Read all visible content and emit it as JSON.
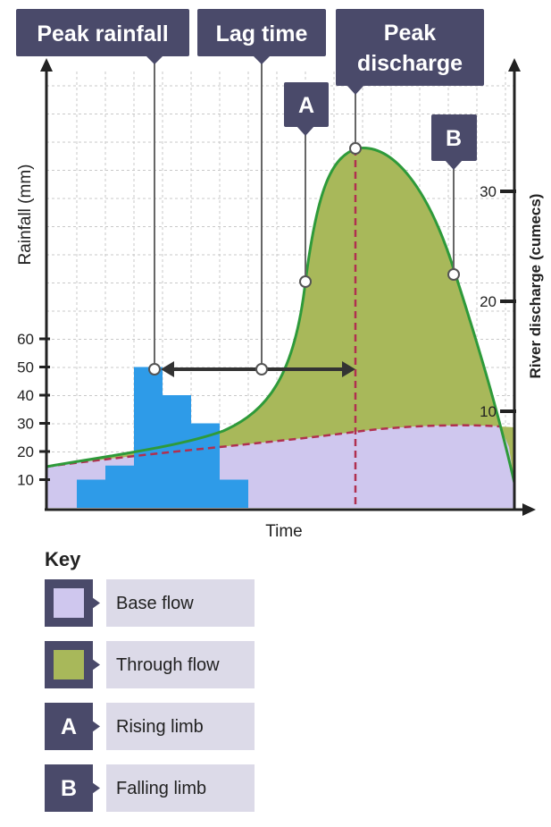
{
  "chart_data": {
    "type": "hydrograph",
    "callouts": {
      "peak_rainfall": "Peak rainfall",
      "lag_time": "Lag time",
      "peak_discharge_line1": "Peak",
      "peak_discharge_line2": "discharge",
      "a": "A",
      "b": "B"
    },
    "xlabel": "Time",
    "ylabel_left": "Rainfall (mm)",
    "ylabel_right": "River discharge (cumecs)",
    "left_ticks": [
      "10",
      "20",
      "30",
      "40",
      "50",
      "60"
    ],
    "right_ticks": [
      "10",
      "20",
      "30"
    ],
    "rainfall": [
      {
        "slot": 1,
        "value": 10
      },
      {
        "slot": 2,
        "value": 15
      },
      {
        "slot": 3,
        "value": 50
      },
      {
        "slot": 4,
        "value": 40
      },
      {
        "slot": 5,
        "value": 30
      },
      {
        "slot": 6,
        "value": 10
      }
    ],
    "colors": {
      "base_flow": "#cfc7ee",
      "through_flow": "#a8b85a",
      "rainfall_bars": "#2e9be8",
      "discharge_line": "#2e9a3a",
      "base_line": "#b03050",
      "callout": "#4a4a6a",
      "key_bg": "#dcdae8"
    }
  },
  "key": {
    "title": "Key",
    "items": [
      {
        "swatch": "base-flow",
        "label": "Base flow"
      },
      {
        "swatch": "through-flow",
        "label": "Through flow"
      },
      {
        "swatch": "A",
        "label": "Rising limb"
      },
      {
        "swatch": "B",
        "label": "Falling limb"
      }
    ]
  }
}
